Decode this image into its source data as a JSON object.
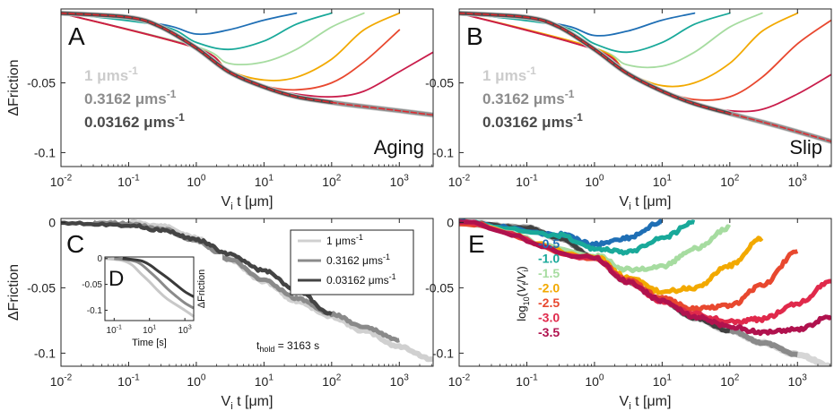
{
  "figure": {
    "panels_note": ""
  },
  "chart_data": [
    {
      "panel": "A",
      "type": "line",
      "annotation": "Aging",
      "xlabel": "V_i t [μm]",
      "ylabel": "ΔFriction",
      "xscale": "log",
      "xlim": [
        0.01,
        3162
      ],
      "ylim": [
        -0.11,
        0.003
      ],
      "xticks": [
        "10^-2",
        "10^-1",
        "10^0",
        "10^1",
        "10^2",
        "10^3"
      ],
      "yticks": [
        -0.05,
        -0.1
      ],
      "ytick_labels": [
        "-0.05",
        "-0.1"
      ],
      "legend_text": [
        {
          "text": "1 μms⁻¹",
          "color": "#cccccc"
        },
        {
          "text": "0.3162 μms⁻¹",
          "color": "#8c8c8c"
        },
        {
          "text": "0.03162 μms⁻¹",
          "color": "#4a4a4a"
        }
      ],
      "base_curve": {
        "x": [
          0.01,
          0.1,
          0.3,
          1,
          3,
          10,
          30,
          100,
          300,
          1000,
          3162
        ],
        "y": [
          0,
          -0.003,
          -0.01,
          -0.025,
          -0.042,
          -0.053,
          -0.06,
          -0.064,
          -0.067,
          -0.07,
          -0.073
        ]
      },
      "fit_line": {
        "name": "",
        "color": "#e0292f"
      },
      "series": [
        {
          "name": "-0.5",
          "color": "#1f6fb5",
          "x": [
            0.01,
            0.3,
            1,
            3,
            10,
            30
          ],
          "y": [
            0,
            -0.008,
            -0.015,
            -0.012,
            -0.005,
            0
          ]
        },
        {
          "name": "-1.0",
          "color": "#19a99a",
          "x": [
            0.01,
            0.3,
            1,
            3,
            10,
            30,
            100
          ],
          "y": [
            0,
            -0.009,
            -0.021,
            -0.026,
            -0.02,
            -0.008,
            0
          ]
        },
        {
          "name": "-1.5",
          "color": "#a6dca0",
          "x": [
            0.01,
            1,
            3,
            10,
            30,
            100,
            300
          ],
          "y": [
            0,
            -0.024,
            -0.036,
            -0.035,
            -0.026,
            -0.01,
            0
          ]
        },
        {
          "name": "-2.0",
          "color": "#f2a900",
          "x": [
            0.01,
            1,
            3,
            10,
            30,
            100,
            300,
            1000
          ],
          "y": [
            0,
            -0.025,
            -0.041,
            -0.048,
            -0.046,
            -0.033,
            -0.012,
            0
          ]
        },
        {
          "name": "-2.5",
          "color": "#e8482f",
          "x": [
            0.01,
            1,
            3,
            10,
            30,
            100,
            300,
            1000
          ],
          "y": [
            0,
            -0.025,
            -0.042,
            -0.052,
            -0.055,
            -0.05,
            -0.035,
            -0.012
          ]
        },
        {
          "name": "-3.0",
          "color": "#c91d4b",
          "x": [
            0.01,
            1,
            3,
            10,
            30,
            100,
            300,
            1000,
            3162
          ],
          "y": [
            0,
            -0.025,
            -0.042,
            -0.053,
            -0.058,
            -0.06,
            -0.056,
            -0.042,
            -0.028
          ]
        }
      ]
    },
    {
      "panel": "B",
      "type": "line",
      "annotation": "Slip",
      "xlabel": "V_i t [μm]",
      "ylabel": "",
      "xscale": "log",
      "xlim": [
        0.01,
        3162
      ],
      "ylim": [
        -0.11,
        0.003
      ],
      "xticks": [
        "10^-2",
        "10^-1",
        "10^0",
        "10^1",
        "10^2",
        "10^3"
      ],
      "yticks": [
        -0.05,
        -0.1
      ],
      "ytick_labels": [
        "-0.05",
        "-0.1"
      ],
      "legend_text": [
        {
          "text": "1 μms⁻¹",
          "color": "#cccccc"
        },
        {
          "text": "0.3162 μms⁻¹",
          "color": "#8c8c8c"
        },
        {
          "text": "0.03162 μms⁻¹",
          "color": "#4a4a4a"
        }
      ],
      "base_curve": {
        "x": [
          0.01,
          0.1,
          0.3,
          1,
          3,
          10,
          30,
          100,
          300,
          1000,
          3162
        ],
        "y": [
          0,
          -0.003,
          -0.01,
          -0.026,
          -0.043,
          -0.056,
          -0.065,
          -0.072,
          -0.078,
          -0.085,
          -0.092
        ]
      },
      "fit_line": {
        "name": "",
        "color": "#e0292f"
      },
      "series": [
        {
          "name": "-0.5",
          "color": "#1f6fb5",
          "x": [
            0.01,
            0.3,
            1,
            3,
            10,
            30
          ],
          "y": [
            0,
            -0.008,
            -0.016,
            -0.013,
            -0.005,
            0
          ]
        },
        {
          "name": "-1.0",
          "color": "#19a99a",
          "x": [
            0.01,
            0.3,
            1,
            3,
            10,
            30,
            100
          ],
          "y": [
            0,
            -0.009,
            -0.022,
            -0.028,
            -0.021,
            -0.008,
            0
          ]
        },
        {
          "name": "-1.5",
          "color": "#a6dca0",
          "x": [
            0.01,
            1,
            3,
            10,
            30,
            100,
            300
          ],
          "y": [
            0,
            -0.025,
            -0.037,
            -0.038,
            -0.028,
            -0.01,
            0
          ]
        },
        {
          "name": "-2.0",
          "color": "#f2a900",
          "x": [
            0.01,
            1,
            3,
            10,
            30,
            100,
            300,
            1000
          ],
          "y": [
            0,
            -0.025,
            -0.042,
            -0.052,
            -0.05,
            -0.036,
            -0.013,
            0
          ]
        },
        {
          "name": "-2.5",
          "color": "#e8482f",
          "x": [
            0.01,
            1,
            3,
            10,
            30,
            100,
            300,
            1000,
            3162
          ],
          "y": [
            0,
            -0.026,
            -0.043,
            -0.055,
            -0.062,
            -0.06,
            -0.046,
            -0.022,
            -0.005
          ]
        },
        {
          "name": "-3.0",
          "color": "#c91d4b",
          "x": [
            0.01,
            1,
            3,
            10,
            30,
            100,
            300,
            1000,
            3162
          ],
          "y": [
            0,
            -0.026,
            -0.043,
            -0.056,
            -0.065,
            -0.07,
            -0.069,
            -0.058,
            -0.044
          ]
        }
      ]
    },
    {
      "panel": "C",
      "type": "line",
      "annotation": "t_hold = 3163 s",
      "xlabel": "V_i t [μm]",
      "ylabel": "ΔFriction",
      "xscale": "log",
      "xlim": [
        0.01,
        3162
      ],
      "ylim": [
        -0.11,
        0.003
      ],
      "xticks": [
        "10^-2",
        "10^-1",
        "10^0",
        "10^1",
        "10^2",
        "10^3"
      ],
      "yticks": [
        0,
        -0.05,
        -0.1
      ],
      "ytick_labels": [
        "0",
        "-0.05",
        "-0.1"
      ],
      "legend": {
        "placement": "upper-right",
        "entries": [
          {
            "text": "1 μms⁻¹",
            "color": "#d0d0d0"
          },
          {
            "text": "0.3162 μms⁻¹",
            "color": "#8a8a8a"
          },
          {
            "text": "0.03162 μms⁻¹",
            "color": "#444444"
          }
        ]
      },
      "series": [
        {
          "name": "1 μms⁻¹",
          "color": "#d0d0d0",
          "x": [
            0.1,
            0.3,
            1,
            3,
            10,
            30,
            100,
            300,
            1000,
            3162
          ],
          "y": [
            0,
            -0.003,
            -0.012,
            -0.028,
            -0.045,
            -0.06,
            -0.072,
            -0.083,
            -0.095,
            -0.105
          ]
        },
        {
          "name": "0.3162 μms⁻¹",
          "color": "#8a8a8a",
          "x": [
            0.03,
            0.1,
            0.3,
            1,
            3,
            10,
            30,
            100,
            300,
            1000
          ],
          "y": [
            0,
            -0.001,
            -0.005,
            -0.014,
            -0.028,
            -0.044,
            -0.058,
            -0.07,
            -0.08,
            -0.09
          ]
        },
        {
          "name": "0.03162 μms⁻¹",
          "color": "#444444",
          "x": [
            0.01,
            0.1,
            0.3,
            1,
            3,
            10,
            30,
            100
          ],
          "y": [
            0,
            -0.002,
            -0.006,
            -0.013,
            -0.024,
            -0.037,
            -0.052,
            -0.07
          ]
        }
      ],
      "inset": {
        "label": "D",
        "xlabel": "Time [s]",
        "ylabel": "ΔFriction",
        "xscale": "log",
        "xlim": [
          0.03,
          3162
        ],
        "ylim": [
          -0.12,
          0.003
        ],
        "xticks": [
          "10^-1",
          "10^1",
          "10^3"
        ],
        "yticks": [
          0,
          -0.05,
          -0.1
        ],
        "ytick_labels": [
          "0",
          "-0.05",
          "-0.1"
        ],
        "series": [
          {
            "name": "1 μms⁻¹",
            "color": "#c8c8c8",
            "x": [
              0.03,
              0.3,
              1,
              3,
              10,
              30,
              100,
              1000,
              3162
            ],
            "y": [
              0,
              -0.004,
              -0.012,
              -0.028,
              -0.045,
              -0.062,
              -0.078,
              -0.1,
              -0.112
            ]
          },
          {
            "name": "0.3162 μms⁻¹",
            "color": "#8a8a8a",
            "x": [
              0.1,
              1,
              3,
              10,
              30,
              100,
              300,
              1000,
              3162
            ],
            "y": [
              0,
              -0.004,
              -0.01,
              -0.025,
              -0.04,
              -0.058,
              -0.072,
              -0.086,
              -0.096
            ]
          },
          {
            "name": "0.03162 μms⁻¹",
            "color": "#3a3a3a",
            "x": [
              0.3,
              3,
              10,
              30,
              100,
              300,
              1000,
              3162
            ],
            "y": [
              0,
              -0.004,
              -0.012,
              -0.024,
              -0.037,
              -0.05,
              -0.064,
              -0.074
            ]
          }
        ]
      }
    },
    {
      "panel": "E",
      "type": "line",
      "annotation": "",
      "xlabel": "V_i t [μm]",
      "ylabel": "",
      "xscale": "log",
      "xlim": [
        0.01,
        3162
      ],
      "ylim": [
        -0.11,
        0.003
      ],
      "xticks": [
        "10^-2",
        "10^-1",
        "10^0",
        "10^1",
        "10^2",
        "10^3"
      ],
      "yticks": [
        0,
        -0.05,
        -0.1
      ],
      "ytick_labels": [
        "0",
        "-0.05",
        "-0.1"
      ],
      "legend_title": "log10(Vf/Vi)",
      "base_curve": {
        "x": [
          0.01,
          0.1,
          0.3,
          1,
          3,
          10,
          30,
          100,
          300,
          1000,
          3162
        ],
        "y": [
          0,
          -0.004,
          -0.012,
          -0.027,
          -0.045,
          -0.06,
          -0.073,
          -0.083,
          -0.092,
          -0.101,
          -0.11
        ]
      },
      "series": [
        {
          "name": "-0.5",
          "color": "#1f6fb5",
          "x": [
            0.01,
            0.3,
            1,
            3,
            10
          ],
          "y": [
            0,
            -0.009,
            -0.017,
            -0.012,
            0
          ]
        },
        {
          "name": "-1.0",
          "color": "#19a99a",
          "x": [
            0.01,
            0.3,
            1,
            3,
            10,
            30
          ],
          "y": [
            0,
            -0.01,
            -0.02,
            -0.023,
            -0.012,
            0
          ]
        },
        {
          "name": "-1.5",
          "color": "#a6dca0",
          "x": [
            0.01,
            1,
            3,
            10,
            30,
            100
          ],
          "y": [
            0,
            -0.025,
            -0.036,
            -0.034,
            -0.02,
            -0.004
          ]
        },
        {
          "name": "-2.0",
          "color": "#f2a900",
          "x": [
            0.01,
            1,
            3,
            10,
            30,
            100,
            300
          ],
          "y": [
            0,
            -0.026,
            -0.042,
            -0.053,
            -0.05,
            -0.033,
            -0.012
          ]
        },
        {
          "name": "-2.5",
          "color": "#e8482f",
          "x": [
            0.01,
            1,
            3,
            10,
            30,
            100,
            300,
            1000
          ],
          "y": [
            0,
            -0.027,
            -0.044,
            -0.058,
            -0.066,
            -0.064,
            -0.048,
            -0.022
          ]
        },
        {
          "name": "-3.0",
          "color": "#e0294b",
          "x": [
            0.01,
            1,
            3,
            10,
            30,
            100,
            300,
            1000,
            3162
          ],
          "y": [
            0,
            -0.027,
            -0.045,
            -0.06,
            -0.07,
            -0.076,
            -0.074,
            -0.062,
            -0.045
          ]
        },
        {
          "name": "-3.5",
          "color": "#b0124e",
          "x": [
            0.01,
            1,
            3,
            10,
            30,
            100,
            300,
            1000,
            3162
          ],
          "y": [
            0,
            -0.027,
            -0.045,
            -0.06,
            -0.072,
            -0.08,
            -0.084,
            -0.082,
            -0.072
          ]
        }
      ]
    }
  ]
}
